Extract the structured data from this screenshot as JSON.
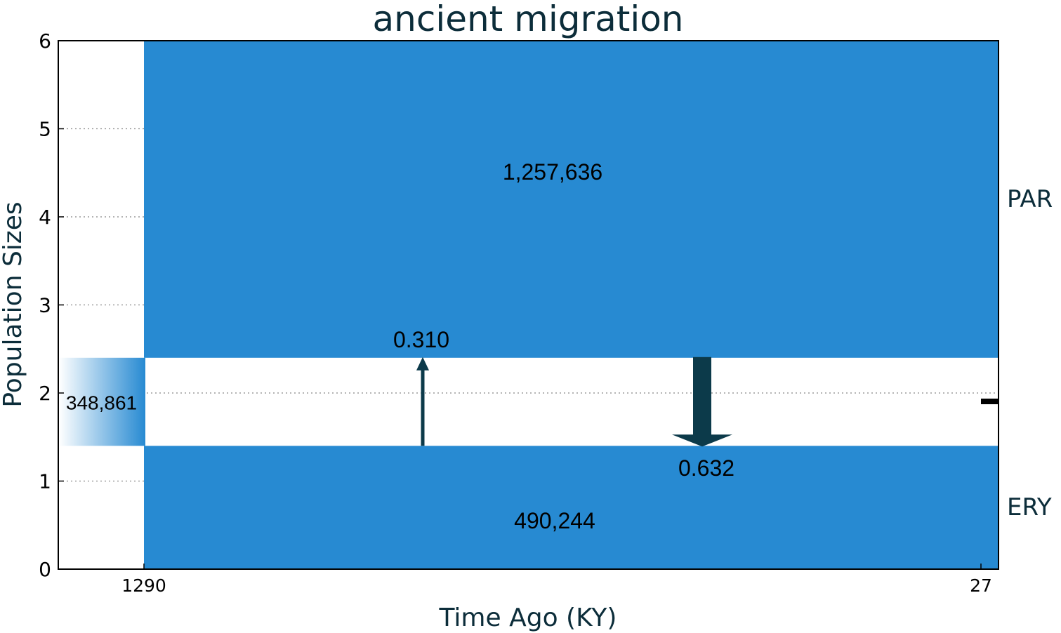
{
  "chart_data": {
    "type": "area",
    "title": "ancient migration",
    "xlabel": "Time Ago (KY)",
    "ylabel": "Population Sizes",
    "ylim": [
      0,
      6
    ],
    "yticks": [
      "0",
      "1",
      "2",
      "3",
      "4",
      "5",
      "6"
    ],
    "xticks": [
      "1290",
      "27"
    ],
    "grid": true,
    "ancestral": {
      "size_label": "348,861",
      "y_range": [
        1.4,
        2.4
      ]
    },
    "populations": [
      {
        "name": "PAR",
        "size_label": "1,257,636",
        "y_range": [
          2.4,
          6.0
        ]
      },
      {
        "name": "ERY",
        "size_label": "490,244",
        "y_range": [
          0.0,
          1.4
        ]
      }
    ],
    "migrations": [
      {
        "rate": "0.310",
        "direction": "up",
        "from": "ERY",
        "to": "PAR"
      },
      {
        "rate": "0.632",
        "direction": "down",
        "from": "PAR",
        "to": "ERY"
      }
    ],
    "colors": {
      "population": "#278ad2",
      "arrow": "#0c3a4a",
      "text": "#0c2d3a"
    }
  }
}
